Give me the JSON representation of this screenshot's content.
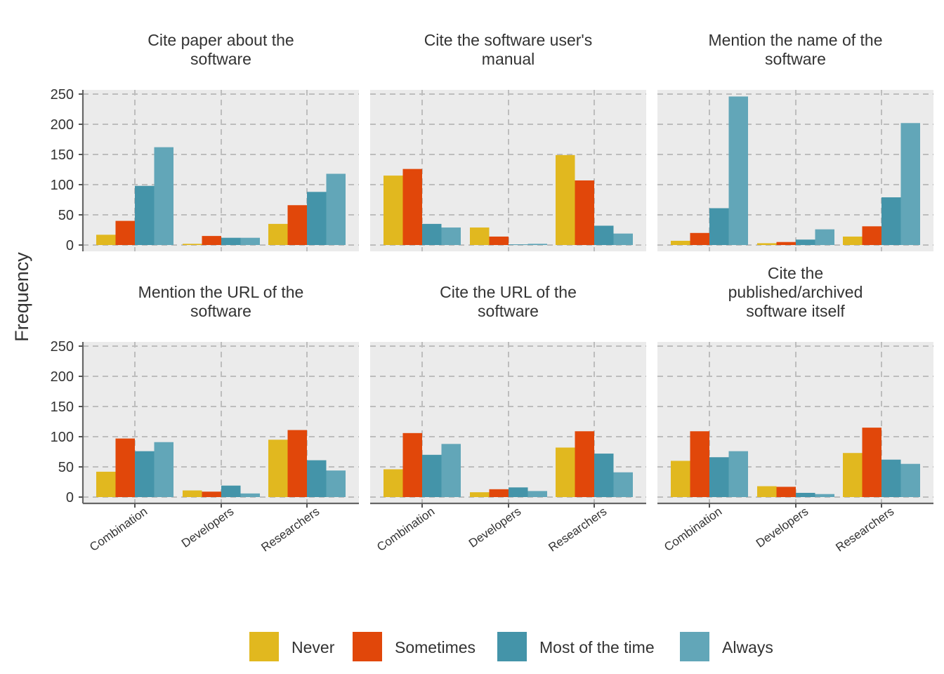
{
  "chart_data": {
    "type": "bar",
    "ylabel": "Frequency",
    "xlabel": "",
    "ylim": [
      0,
      260
    ],
    "yticks": [
      0,
      50,
      100,
      150,
      200,
      250
    ],
    "categories": [
      "Combination",
      "Developers",
      "Researchers"
    ],
    "series_names": [
      "Never",
      "Sometimes",
      "Most of the time",
      "Always"
    ],
    "colors": [
      "#E1B81F",
      "#E1470A",
      "#4494A9",
      "#62A6B8"
    ],
    "legend_position": "bottom",
    "grid": true,
    "panels": [
      {
        "title_lines": [
          "Cite paper about the",
          "software"
        ],
        "values": [
          [
            17,
            40,
            98,
            162
          ],
          [
            2,
            15,
            12,
            12
          ],
          [
            35,
            66,
            88,
            118
          ]
        ]
      },
      {
        "title_lines": [
          "Cite the software user's",
          "manual"
        ],
        "values": [
          [
            115,
            126,
            35,
            29
          ],
          [
            29,
            14,
            1,
            2
          ],
          [
            149,
            107,
            32,
            19
          ]
        ]
      },
      {
        "title_lines": [
          "Mention the name of the",
          "software"
        ],
        "values": [
          [
            7,
            20,
            61,
            246
          ],
          [
            3,
            5,
            9,
            26
          ],
          [
            14,
            31,
            79,
            202
          ]
        ]
      },
      {
        "title_lines": [
          "Mention the URL of the",
          "software"
        ],
        "values": [
          [
            42,
            97,
            76,
            91
          ],
          [
            11,
            9,
            19,
            6
          ],
          [
            95,
            111,
            61,
            44
          ]
        ]
      },
      {
        "title_lines": [
          "Cite the URL of the",
          "software"
        ],
        "values": [
          [
            46,
            106,
            70,
            88
          ],
          [
            8,
            13,
            16,
            10
          ],
          [
            82,
            109,
            72,
            41
          ]
        ]
      },
      {
        "title_lines": [
          "Cite the",
          "published/archived",
          "software itself"
        ],
        "values": [
          [
            60,
            109,
            66,
            76
          ],
          [
            18,
            17,
            7,
            5
          ],
          [
            73,
            115,
            62,
            55
          ]
        ]
      }
    ]
  }
}
